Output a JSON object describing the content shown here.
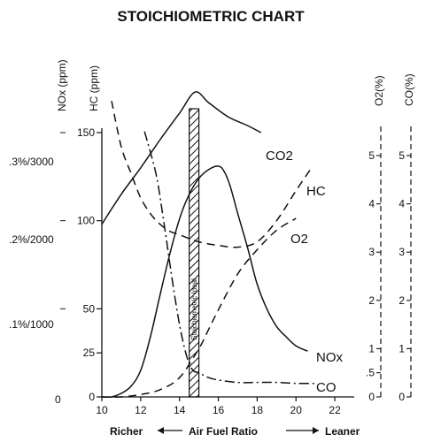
{
  "chart_data": {
    "type": "line",
    "title": "STOICHIOMETRIC CHART",
    "xlabel": "Air Fuel Ratio",
    "x_left_label": "Richer",
    "x_right_label": "Leaner",
    "xlim": [
      10,
      23
    ],
    "x_ticks": [
      "10",
      "12",
      "14",
      "16",
      "18",
      "20",
      "22"
    ],
    "stoichiometric_label": "Stoichiometric Ideal",
    "stoichiometric_range": [
      14.5,
      15.0
    ],
    "axes": {
      "nox": {
        "title": "NOx (ppm)",
        "ticks": [
          ".1%/1000",
          ".2%/2000",
          ".3%/3000"
        ],
        "tick_values": [
          1000,
          2000,
          3000
        ],
        "zero_label": "0"
      },
      "hc": {
        "title": "HC (ppm)",
        "ticks": [
          "150",
          "100",
          "50",
          "25",
          "0"
        ],
        "tick_values": [
          150,
          100,
          50,
          25,
          0
        ],
        "ylim": [
          0,
          190
        ]
      },
      "o2": {
        "title": "O2(%)",
        "ticks": [
          "5",
          "4",
          "3",
          "2",
          "1",
          ".5",
          "0"
        ],
        "tick_values": [
          5,
          4,
          3,
          2,
          1,
          0.5,
          0
        ]
      },
      "co": {
        "title": "CO(%)",
        "ticks": [
          "5",
          "4",
          "3",
          "2",
          "1",
          "0"
        ],
        "tick_values": [
          5,
          4,
          3,
          2,
          1,
          0
        ]
      }
    },
    "series": [
      {
        "name": "CO2",
        "axis": "hc",
        "style": "solid",
        "x": [
          10,
          11,
          12,
          13,
          14,
          14.8,
          15.5,
          16.5,
          17.5,
          18.2
        ],
        "y": [
          98,
          115,
          130,
          146,
          161,
          173,
          167,
          159,
          154,
          150
        ]
      },
      {
        "name": "HC",
        "axis": "hc",
        "style": "dashed",
        "x": [
          10.5,
          11,
          11.5,
          12,
          12.5,
          13,
          13.5,
          14,
          15,
          16,
          17,
          18,
          19,
          20,
          20.8
        ],
        "y": [
          168,
          142,
          127,
          113,
          104,
          98,
          94,
          92,
          88,
          86,
          85,
          88,
          100,
          117,
          130
        ]
      },
      {
        "name": "O2",
        "axis": "o2",
        "style": "dashed",
        "x": [
          10,
          11,
          12,
          13,
          14,
          15,
          15.5,
          16,
          17,
          18,
          19,
          20
        ],
        "y": [
          0,
          0,
          0.05,
          0.15,
          0.4,
          1.0,
          1.4,
          1.8,
          2.55,
          3.05,
          3.45,
          3.7
        ]
      },
      {
        "name": "NOx",
        "axis": "hc",
        "style": "solid",
        "x": [
          10,
          10.5,
          11,
          11.5,
          12,
          12.5,
          13,
          13.5,
          14,
          14.5,
          15,
          15.5,
          16,
          16.3,
          16.6,
          17,
          17.5,
          18,
          18.5,
          19,
          19.5,
          20,
          20.6
        ],
        "y": [
          0,
          0,
          2,
          6,
          15,
          34,
          58,
          81,
          101,
          115,
          124,
          129,
          131,
          128,
          120,
          104,
          85,
          64,
          50,
          40,
          34,
          29,
          26
        ]
      },
      {
        "name": "CO",
        "axis": "co",
        "style": "dashdot",
        "x": [
          12.2,
          12.8,
          13.2,
          13.6,
          14,
          14.4,
          14.7,
          15,
          15.5,
          16,
          17,
          18,
          19,
          20,
          21
        ],
        "y": [
          5.5,
          4.6,
          3.6,
          2.5,
          1.5,
          0.8,
          0.55,
          0.5,
          0.4,
          0.35,
          0.3,
          0.3,
          0.3,
          0.28,
          0.28
        ]
      }
    ]
  }
}
